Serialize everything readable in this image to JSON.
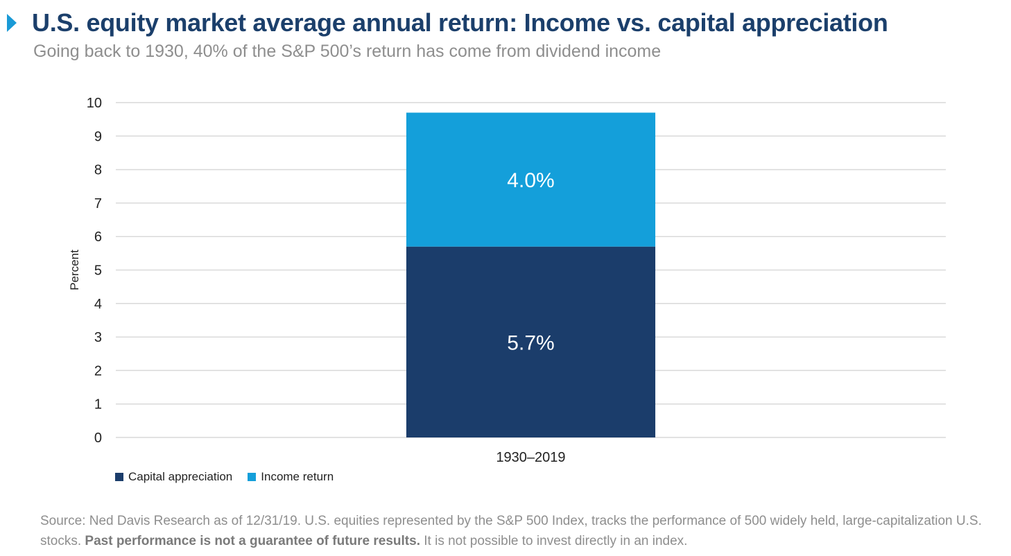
{
  "header": {
    "title": "U.S. equity market average annual return: Income vs. capital appreciation",
    "subtitle": "Going back to 1930, 40% of the S&P 500’s return has come from dividend income"
  },
  "colors": {
    "title": "#1b3f6b",
    "accent_arrow": "#1a9ad6",
    "subtitle_gray": "#8e8e8e",
    "capital_appreciation": "#1b3d6b",
    "income_return": "#149fda",
    "gridline": "#d9d9d9"
  },
  "chart_data": {
    "type": "bar",
    "stacked": true,
    "categories": [
      "1930–2019"
    ],
    "series": [
      {
        "name": "Capital appreciation",
        "values": [
          5.7
        ],
        "labels": [
          "5.7%"
        ]
      },
      {
        "name": "Income return",
        "values": [
          4.0
        ],
        "labels": [
          "4.0%"
        ]
      }
    ],
    "ylabel": "Percent",
    "xlabel": "",
    "ylim": [
      0,
      10
    ],
    "yticks": [
      "0",
      "1",
      "2",
      "3",
      "4",
      "5",
      "6",
      "7",
      "8",
      "9",
      "10"
    ],
    "grid": true,
    "legend_position": "bottom-left"
  },
  "legend": {
    "items": [
      "Capital appreciation",
      "Income return"
    ]
  },
  "footnote": {
    "part1": "Source: Ned Davis Research as of 12/31/19. U.S. equities represented by the S&P 500 Index, tracks the performance of 500 widely held, large-capitalization U.S. stocks. ",
    "bold": "Past performance is not a guarantee of future results.",
    "part2": " It is not possible to invest directly in an index."
  }
}
